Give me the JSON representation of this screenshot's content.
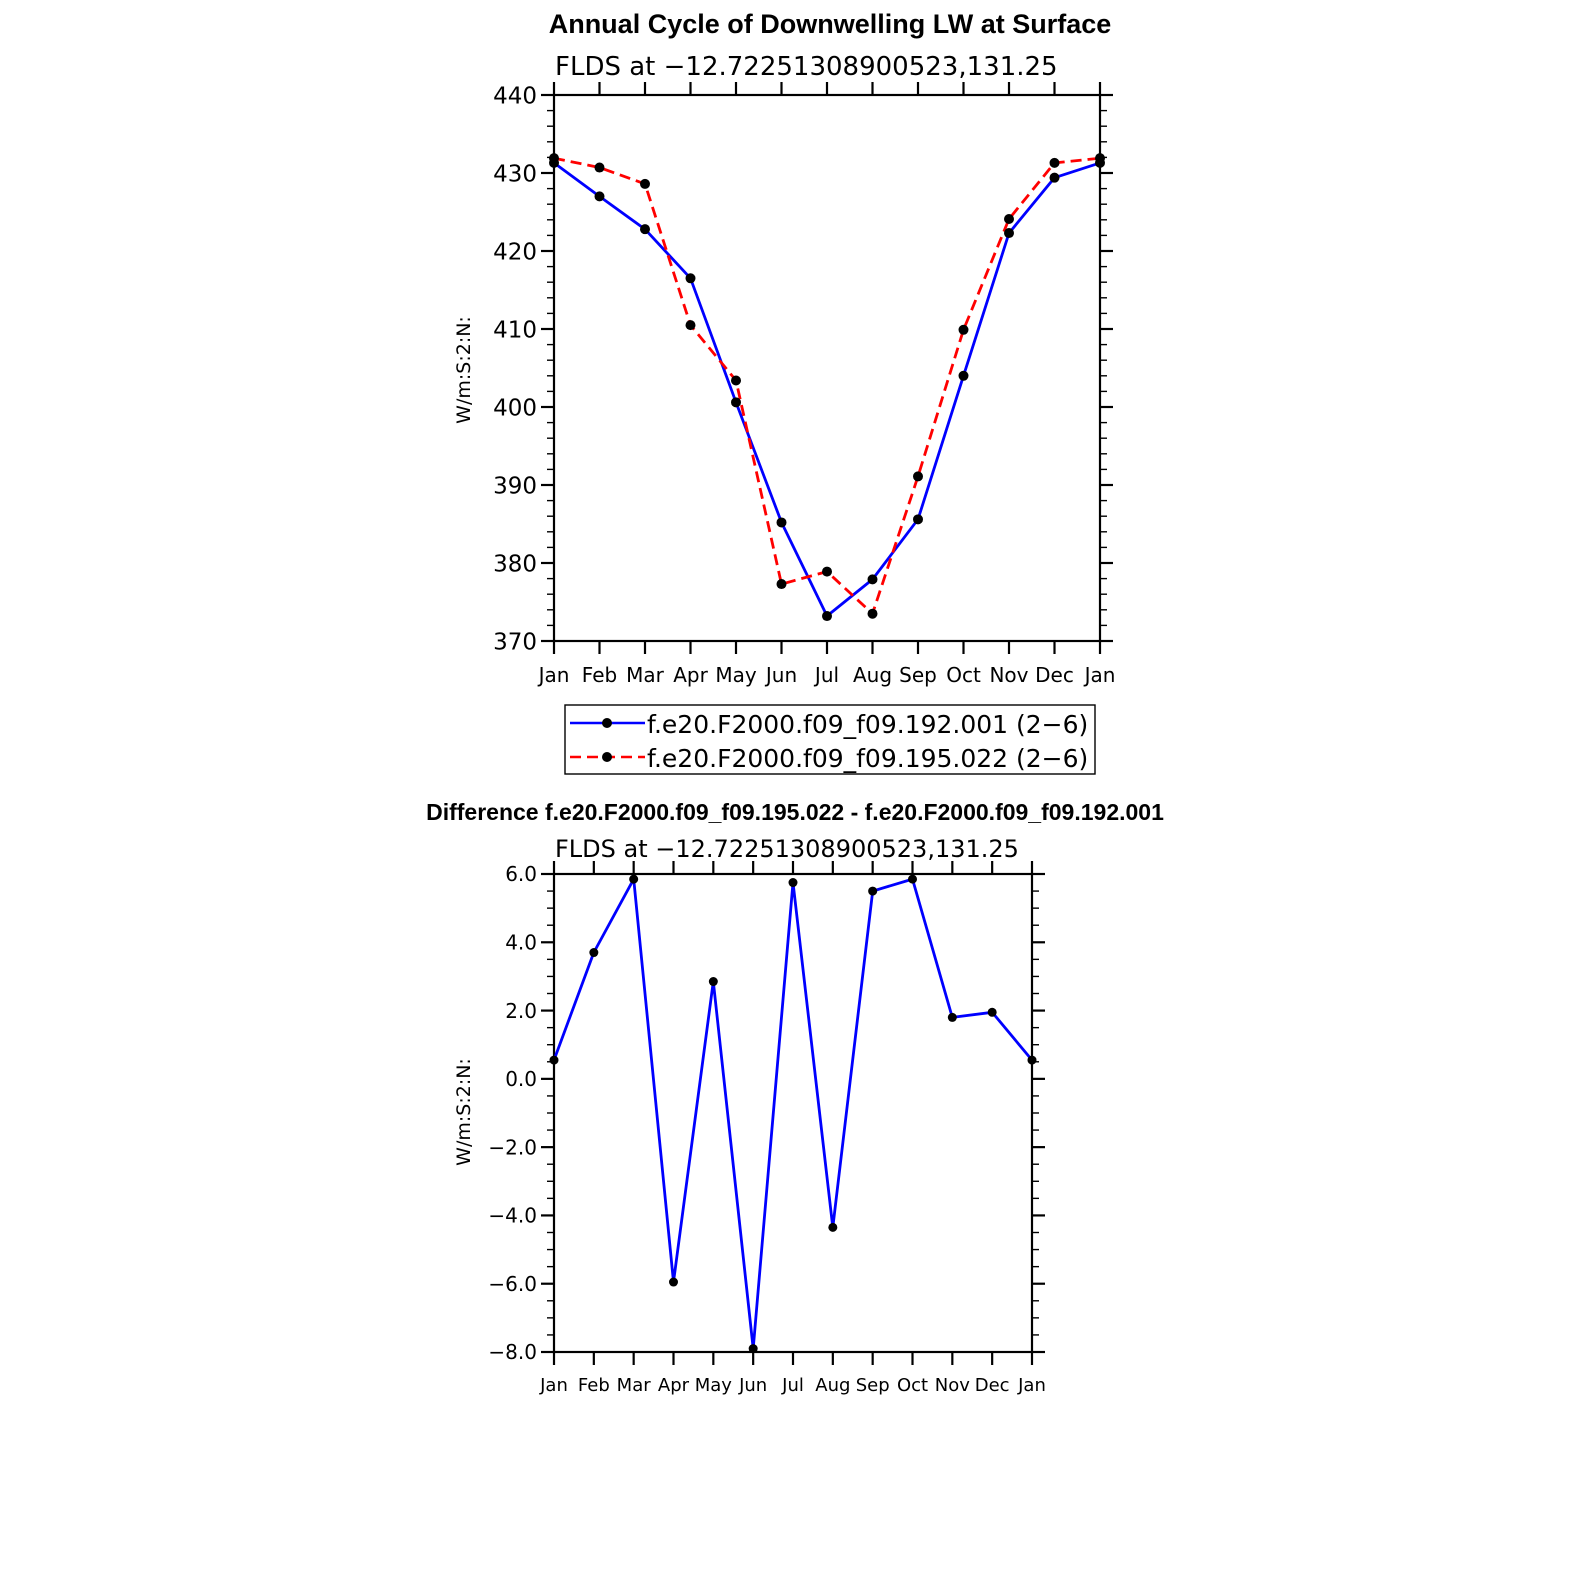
{
  "chart_data": [
    {
      "type": "line",
      "title": "Annual Cycle of Downwelling LW at Surface",
      "subtitle": "FLDS at −12.72251308900523,131.25",
      "xlabel": "",
      "ylabel": "W/m:S:2:N:",
      "categories": [
        "Jan",
        "Feb",
        "Mar",
        "Apr",
        "May",
        "Jun",
        "Jul",
        "Aug",
        "Sep",
        "Oct",
        "Nov",
        "Dec",
        "Jan"
      ],
      "ylim": [
        370,
        440
      ],
      "yticks": [
        370,
        380,
        390,
        400,
        410,
        420,
        430,
        440
      ],
      "ytick_labels": [
        "370",
        "380",
        "390",
        "400",
        "410",
        "420",
        "430",
        "440"
      ],
      "grid": false,
      "legend_position": "bottom",
      "series": [
        {
          "name": "f.e20.F2000.f09_f09.192.001 (2−6)",
          "color": "#0000ff",
          "dash": "solid",
          "values": [
            431.3,
            427.0,
            422.8,
            416.5,
            400.6,
            385.2,
            373.2,
            377.9,
            385.6,
            404.0,
            422.3,
            429.4,
            431.3
          ]
        },
        {
          "name": "f.e20.F2000.f09_f09.195.022 (2−6)",
          "color": "#ff0000",
          "dash": "dashed",
          "values": [
            431.9,
            430.7,
            428.6,
            410.5,
            403.4,
            377.3,
            378.9,
            373.5,
            391.1,
            409.9,
            424.1,
            431.3,
            431.9
          ]
        }
      ]
    },
    {
      "type": "line",
      "title": "Difference f.e20.F2000.f09_f09.195.022 - f.e20.F2000.f09_f09.192.001",
      "subtitle": "FLDS at −12.72251308900523,131.25",
      "xlabel": "",
      "ylabel": "W/m:S:2:N:",
      "categories": [
        "Jan",
        "Feb",
        "Mar",
        "Apr",
        "May",
        "Jun",
        "Jul",
        "Aug",
        "Sep",
        "Oct",
        "Nov",
        "Dec",
        "Jan"
      ],
      "ylim": [
        -8.0,
        6.0
      ],
      "yticks": [
        -8,
        -6,
        -4,
        -2,
        0,
        2,
        4,
        6
      ],
      "ytick_labels": [
        "−8.0",
        "−6.0",
        "−4.0",
        "−2.0",
        "0.0",
        "2.0",
        "4.0",
        "6.0"
      ],
      "grid": false,
      "series": [
        {
          "name": "Difference",
          "color": "#0000ff",
          "dash": "solid",
          "values": [
            0.55,
            3.7,
            5.85,
            -5.95,
            2.85,
            -7.9,
            5.75,
            -4.35,
            5.5,
            5.85,
            1.8,
            1.95,
            0.55
          ]
        }
      ]
    }
  ]
}
